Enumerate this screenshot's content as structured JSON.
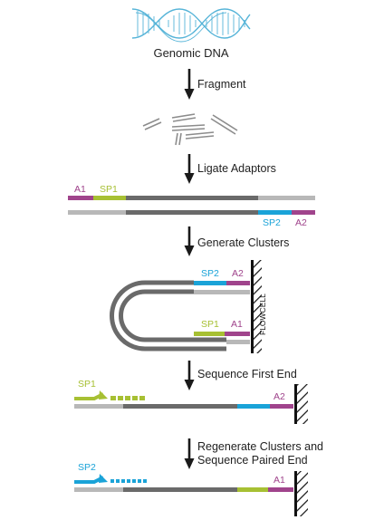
{
  "title": "Genomic DNA",
  "steps": [
    {
      "label": "Fragment"
    },
    {
      "label": "Ligate Adaptors"
    },
    {
      "label": "Generate Clusters"
    },
    {
      "label": "Sequence First End"
    },
    {
      "label": "Regenerate Clusters and",
      "label2": "Sequence Paired End"
    }
  ],
  "tags": {
    "a1": "A1",
    "sp1": "SP1",
    "sp2": "SP2",
    "a2": "A2",
    "flowcell": "FLOWCELL"
  },
  "colors": {
    "dna_strand": "#6a6a6a",
    "dna_light": "#b0b0b0",
    "helix": "#56b4d8",
    "a1": "#a0448c",
    "sp1": "#a7c033",
    "sp2": "#1aa3d8",
    "a2": "#a0448c",
    "arrow": "#1a1a1a"
  }
}
